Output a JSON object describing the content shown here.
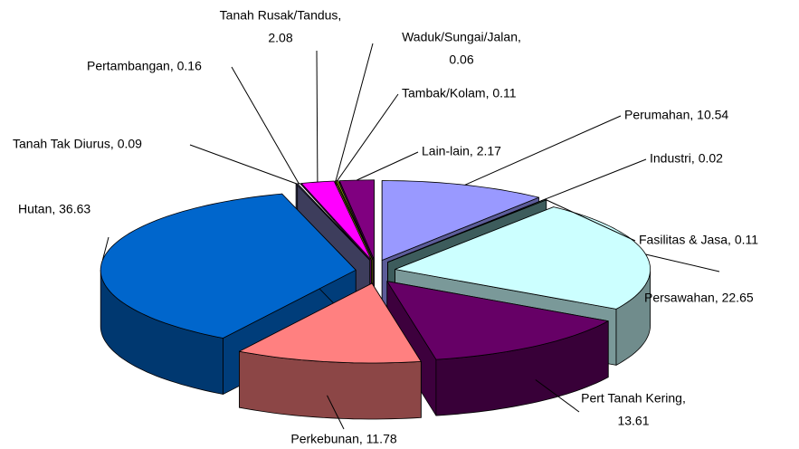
{
  "chart_data": {
    "type": "pie3d",
    "values": [
      10.54,
      0.02,
      0.11,
      22.65,
      13.61,
      11.78,
      36.63,
      0.09,
      0.16,
      2.08,
      0.06,
      0.11,
      2.17
    ],
    "value_labels": [
      "Perumahan, 10.54",
      "Industri, 0.02",
      "Fasilitas &  Jasa, 0.11",
      "Persawahan, 22.65",
      [
        "Pert Tanah Kering,",
        "13.61"
      ],
      "Perkebunan, 11.78",
      "Hutan, 36.63",
      "Tanah Tak Diurus, 0.09",
      "Pertambangan, 0.16",
      [
        "Tanah Rusak/Tandus,",
        "2.08"
      ],
      [
        "Waduk/Sungai/Jalan,",
        "0.06"
      ],
      "Tambak/Kolam, 0.11",
      "Lain-lain, 2.17"
    ],
    "colors": [
      "#9999ff",
      "#999966",
      "#669999",
      "#ccffff",
      "#660066",
      "#ff8080",
      "#0066cc",
      "#666699",
      "#ffffff",
      "#ff00ff",
      "#ffff00",
      "#99cc00",
      "#800080"
    ]
  }
}
